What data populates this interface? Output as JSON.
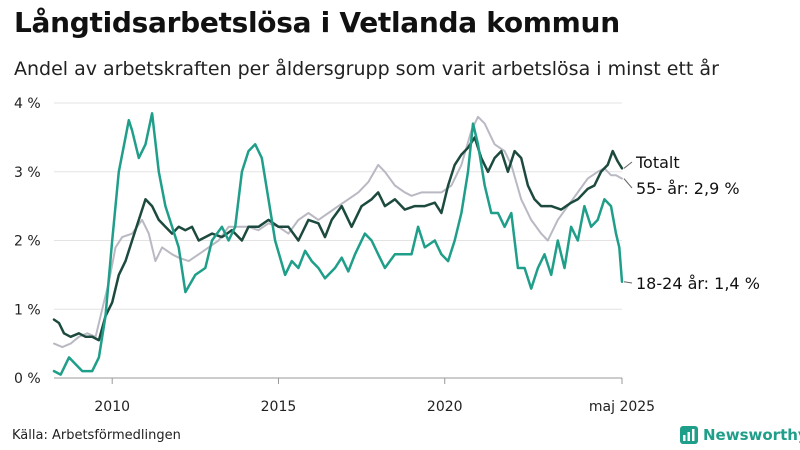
{
  "title": "Långtidsarbetslösa i Vetlanda kommun",
  "subtitle": "Andel av arbetskraften per åldersgrupp som varit arbetslösa i minst ett år",
  "source": "Källa: Arbetsförmedlingen",
  "brand": "Newsworthy",
  "colors": {
    "total": "#1d4a3e",
    "age55": "#b9b9c4",
    "age1824": "#1f9e89",
    "grid": "#e3e3e3",
    "brand": "#1f9e89"
  },
  "chart_data": {
    "type": "line",
    "title": "Långtidsarbetslösa i Vetlanda kommun",
    "subtitle": "Andel av arbetskraften per åldersgrupp som varit arbetslösa i minst ett år",
    "x_range": [
      2008.25,
      2025.33
    ],
    "ylim": [
      0,
      4
    ],
    "y_ticks": [
      0,
      1,
      2,
      3,
      4
    ],
    "y_tick_labels": [
      "0 %",
      "1 %",
      "2 %",
      "3 %",
      "4 %"
    ],
    "x_ticks": [
      2010,
      2015,
      2020,
      2025.33
    ],
    "x_tick_labels": [
      "2010",
      "2015",
      "2020",
      "maj 2025"
    ],
    "grid": "horizontal",
    "series": [
      {
        "name": "55- år",
        "end_label": "55- år: 2,9 %",
        "points": [
          [
            2008.25,
            0.5
          ],
          [
            2008.5,
            0.45
          ],
          [
            2008.75,
            0.5
          ],
          [
            2009.0,
            0.6
          ],
          [
            2009.25,
            0.65
          ],
          [
            2009.5,
            0.6
          ],
          [
            2009.7,
            1.0
          ],
          [
            2009.9,
            1.4
          ],
          [
            2010.1,
            1.9
          ],
          [
            2010.3,
            2.05
          ],
          [
            2010.6,
            2.1
          ],
          [
            2010.9,
            2.3
          ],
          [
            2011.1,
            2.1
          ],
          [
            2011.3,
            1.7
          ],
          [
            2011.5,
            1.9
          ],
          [
            2011.8,
            1.8
          ],
          [
            2012.0,
            1.75
          ],
          [
            2012.3,
            1.7
          ],
          [
            2012.6,
            1.8
          ],
          [
            2012.9,
            1.9
          ],
          [
            2013.2,
            2.0
          ],
          [
            2013.5,
            2.2
          ],
          [
            2013.8,
            2.2
          ],
          [
            2014.1,
            2.2
          ],
          [
            2014.4,
            2.15
          ],
          [
            2014.7,
            2.25
          ],
          [
            2015.0,
            2.2
          ],
          [
            2015.3,
            2.1
          ],
          [
            2015.6,
            2.3
          ],
          [
            2015.9,
            2.4
          ],
          [
            2016.2,
            2.3
          ],
          [
            2016.5,
            2.4
          ],
          [
            2016.8,
            2.5
          ],
          [
            2017.1,
            2.6
          ],
          [
            2017.4,
            2.7
          ],
          [
            2017.7,
            2.85
          ],
          [
            2018.0,
            3.1
          ],
          [
            2018.2,
            3.0
          ],
          [
            2018.5,
            2.8
          ],
          [
            2018.8,
            2.7
          ],
          [
            2019.0,
            2.65
          ],
          [
            2019.3,
            2.7
          ],
          [
            2019.6,
            2.7
          ],
          [
            2019.9,
            2.7
          ],
          [
            2020.2,
            2.8
          ],
          [
            2020.5,
            3.1
          ],
          [
            2020.8,
            3.6
          ],
          [
            2021.0,
            3.8
          ],
          [
            2021.2,
            3.7
          ],
          [
            2021.5,
            3.4
          ],
          [
            2021.8,
            3.3
          ],
          [
            2022.0,
            3.1
          ],
          [
            2022.3,
            2.6
          ],
          [
            2022.6,
            2.3
          ],
          [
            2022.9,
            2.1
          ],
          [
            2023.1,
            2.0
          ],
          [
            2023.4,
            2.3
          ],
          [
            2023.7,
            2.5
          ],
          [
            2024.0,
            2.7
          ],
          [
            2024.3,
            2.9
          ],
          [
            2024.6,
            3.0
          ],
          [
            2024.8,
            3.05
          ],
          [
            2025.0,
            2.95
          ],
          [
            2025.15,
            2.95
          ],
          [
            2025.33,
            2.9
          ]
        ]
      },
      {
        "name": "Totalt",
        "end_label": "Totalt",
        "points": [
          [
            2008.25,
            0.85
          ],
          [
            2008.4,
            0.8
          ],
          [
            2008.55,
            0.65
          ],
          [
            2008.75,
            0.6
          ],
          [
            2009.0,
            0.65
          ],
          [
            2009.2,
            0.6
          ],
          [
            2009.4,
            0.6
          ],
          [
            2009.6,
            0.55
          ],
          [
            2009.8,
            0.9
          ],
          [
            2010.0,
            1.1
          ],
          [
            2010.2,
            1.5
          ],
          [
            2010.4,
            1.7
          ],
          [
            2010.6,
            2.0
          ],
          [
            2010.8,
            2.3
          ],
          [
            2011.0,
            2.6
          ],
          [
            2011.2,
            2.5
          ],
          [
            2011.4,
            2.3
          ],
          [
            2011.6,
            2.2
          ],
          [
            2011.8,
            2.1
          ],
          [
            2012.0,
            2.2
          ],
          [
            2012.2,
            2.15
          ],
          [
            2012.4,
            2.2
          ],
          [
            2012.6,
            2.0
          ],
          [
            2012.8,
            2.05
          ],
          [
            2013.0,
            2.1
          ],
          [
            2013.3,
            2.05
          ],
          [
            2013.6,
            2.15
          ],
          [
            2013.9,
            2.0
          ],
          [
            2014.1,
            2.2
          ],
          [
            2014.4,
            2.2
          ],
          [
            2014.7,
            2.3
          ],
          [
            2015.0,
            2.2
          ],
          [
            2015.3,
            2.2
          ],
          [
            2015.6,
            2.0
          ],
          [
            2015.9,
            2.3
          ],
          [
            2016.2,
            2.25
          ],
          [
            2016.4,
            2.05
          ],
          [
            2016.6,
            2.3
          ],
          [
            2016.9,
            2.5
          ],
          [
            2017.2,
            2.2
          ],
          [
            2017.5,
            2.5
          ],
          [
            2017.8,
            2.6
          ],
          [
            2018.0,
            2.7
          ],
          [
            2018.2,
            2.5
          ],
          [
            2018.5,
            2.6
          ],
          [
            2018.8,
            2.45
          ],
          [
            2019.1,
            2.5
          ],
          [
            2019.4,
            2.5
          ],
          [
            2019.7,
            2.55
          ],
          [
            2019.9,
            2.4
          ],
          [
            2020.1,
            2.8
          ],
          [
            2020.3,
            3.1
          ],
          [
            2020.5,
            3.25
          ],
          [
            2020.7,
            3.35
          ],
          [
            2020.9,
            3.5
          ],
          [
            2021.1,
            3.2
          ],
          [
            2021.3,
            3.0
          ],
          [
            2021.5,
            3.2
          ],
          [
            2021.7,
            3.3
          ],
          [
            2021.9,
            3.0
          ],
          [
            2022.1,
            3.3
          ],
          [
            2022.3,
            3.2
          ],
          [
            2022.5,
            2.8
          ],
          [
            2022.7,
            2.6
          ],
          [
            2022.9,
            2.5
          ],
          [
            2023.2,
            2.5
          ],
          [
            2023.5,
            2.45
          ],
          [
            2023.8,
            2.55
          ],
          [
            2024.0,
            2.6
          ],
          [
            2024.3,
            2.75
          ],
          [
            2024.5,
            2.8
          ],
          [
            2024.7,
            3.0
          ],
          [
            2024.9,
            3.1
          ],
          [
            2025.05,
            3.3
          ],
          [
            2025.2,
            3.15
          ],
          [
            2025.33,
            3.05
          ]
        ]
      },
      {
        "name": "18-24 år",
        "end_label": "18-24 år: 1,4 %",
        "points": [
          [
            2008.25,
            0.1
          ],
          [
            2008.45,
            0.05
          ],
          [
            2008.7,
            0.3
          ],
          [
            2008.9,
            0.2
          ],
          [
            2009.1,
            0.1
          ],
          [
            2009.4,
            0.1
          ],
          [
            2009.6,
            0.3
          ],
          [
            2009.8,
            0.9
          ],
          [
            2010.0,
            2.0
          ],
          [
            2010.2,
            3.0
          ],
          [
            2010.4,
            3.5
          ],
          [
            2010.5,
            3.75
          ],
          [
            2010.6,
            3.6
          ],
          [
            2010.8,
            3.2
          ],
          [
            2011.0,
            3.4
          ],
          [
            2011.2,
            3.85
          ],
          [
            2011.4,
            3.0
          ],
          [
            2011.6,
            2.5
          ],
          [
            2011.8,
            2.2
          ],
          [
            2012.0,
            1.9
          ],
          [
            2012.2,
            1.25
          ],
          [
            2012.5,
            1.5
          ],
          [
            2012.8,
            1.6
          ],
          [
            2013.0,
            2.0
          ],
          [
            2013.3,
            2.2
          ],
          [
            2013.5,
            2.0
          ],
          [
            2013.7,
            2.2
          ],
          [
            2013.9,
            3.0
          ],
          [
            2014.1,
            3.3
          ],
          [
            2014.3,
            3.4
          ],
          [
            2014.5,
            3.2
          ],
          [
            2014.7,
            2.6
          ],
          [
            2014.9,
            2.0
          ],
          [
            2015.2,
            1.5
          ],
          [
            2015.4,
            1.7
          ],
          [
            2015.6,
            1.6
          ],
          [
            2015.8,
            1.85
          ],
          [
            2016.0,
            1.7
          ],
          [
            2016.2,
            1.6
          ],
          [
            2016.4,
            1.45
          ],
          [
            2016.7,
            1.6
          ],
          [
            2016.9,
            1.75
          ],
          [
            2017.1,
            1.55
          ],
          [
            2017.3,
            1.8
          ],
          [
            2017.6,
            2.1
          ],
          [
            2017.8,
            2.0
          ],
          [
            2018.0,
            1.8
          ],
          [
            2018.2,
            1.6
          ],
          [
            2018.5,
            1.8
          ],
          [
            2018.8,
            1.8
          ],
          [
            2019.0,
            1.8
          ],
          [
            2019.2,
            2.2
          ],
          [
            2019.4,
            1.9
          ],
          [
            2019.7,
            2.0
          ],
          [
            2019.9,
            1.8
          ],
          [
            2020.1,
            1.7
          ],
          [
            2020.3,
            2.0
          ],
          [
            2020.5,
            2.4
          ],
          [
            2020.7,
            3.0
          ],
          [
            2020.85,
            3.7
          ],
          [
            2021.0,
            3.4
          ],
          [
            2021.2,
            2.8
          ],
          [
            2021.4,
            2.4
          ],
          [
            2021.6,
            2.4
          ],
          [
            2021.8,
            2.2
          ],
          [
            2022.0,
            2.4
          ],
          [
            2022.2,
            1.6
          ],
          [
            2022.4,
            1.6
          ],
          [
            2022.6,
            1.3
          ],
          [
            2022.8,
            1.6
          ],
          [
            2023.0,
            1.8
          ],
          [
            2023.2,
            1.5
          ],
          [
            2023.4,
            2.0
          ],
          [
            2023.6,
            1.6
          ],
          [
            2023.8,
            2.2
          ],
          [
            2024.0,
            2.0
          ],
          [
            2024.2,
            2.5
          ],
          [
            2024.4,
            2.2
          ],
          [
            2024.6,
            2.3
          ],
          [
            2024.8,
            2.6
          ],
          [
            2025.0,
            2.5
          ],
          [
            2025.15,
            2.1
          ],
          [
            2025.25,
            1.9
          ],
          [
            2025.33,
            1.4
          ]
        ]
      }
    ]
  }
}
